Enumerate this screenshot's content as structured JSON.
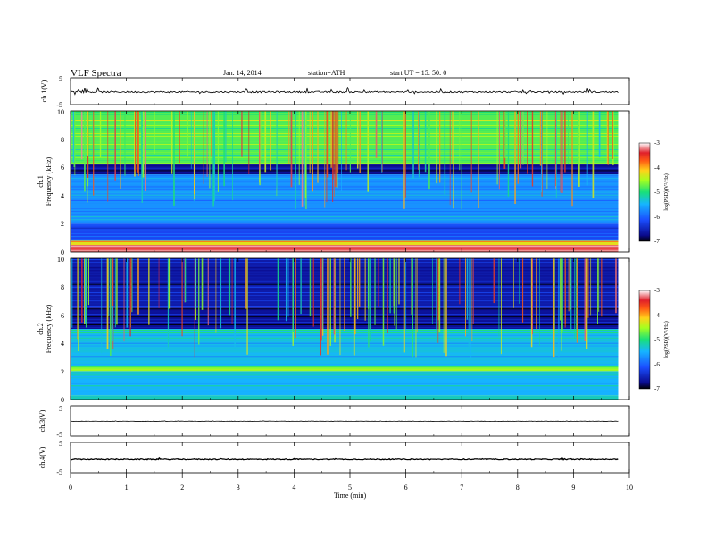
{
  "header": {
    "title": "VLF  Spectra",
    "date": "Jan. 14, 2014",
    "station": "station=ATH",
    "start": "start  UT  =   15: 50: 0"
  },
  "chart_data": [
    {
      "type": "line",
      "panel": "ch1-waveform",
      "ylabel": "ch.1(V)",
      "ylim": [
        -5,
        5
      ],
      "yticks": [
        "5",
        "-5"
      ],
      "xlim": [
        0,
        10
      ],
      "baseline": -0.3,
      "noise_amplitude": 0.3,
      "spike_amplitude": 1.2
    },
    {
      "type": "heatmap",
      "panel": "ch1-spectrogram",
      "ylabel": "Frequency  (kHz)",
      "ylabel2": "ch.1",
      "ylim": [
        0,
        10
      ],
      "yticks": [
        "0",
        "2",
        "4",
        "6",
        "8",
        "10"
      ],
      "xlim": [
        0,
        10
      ],
      "data_xmax": 9.8,
      "colorbar": {
        "label": "log(PSD)(V²/Hz)",
        "range": [
          -7,
          -3
        ],
        "ticks": [
          "-3",
          "-4",
          "-5",
          "-6",
          "-7"
        ]
      },
      "bands": [
        {
          "f": [
            0.0,
            0.5
          ],
          "level": -3.3
        },
        {
          "f": [
            0.5,
            0.8
          ],
          "level": -4.3
        },
        {
          "f": [
            0.8,
            2.0
          ],
          "level": -6.2
        },
        {
          "f": [
            2.0,
            5.5
          ],
          "level": -5.7
        },
        {
          "f": [
            5.5,
            6.2
          ],
          "level": -6.7
        },
        {
          "f": [
            6.2,
            10.0
          ],
          "level": -4.8
        }
      ]
    },
    {
      "type": "heatmap",
      "panel": "ch2-spectrogram",
      "ylabel": "Frequency  (kHz)",
      "ylabel2": "ch.2",
      "ylim": [
        0,
        10
      ],
      "yticks": [
        "0",
        "2",
        "4",
        "6",
        "8",
        "10"
      ],
      "xlim": [
        0,
        10
      ],
      "data_xmax": 9.8,
      "colorbar": {
        "label": "log(PSD)(V²/Hz)",
        "range": [
          -7,
          -3
        ],
        "ticks": [
          "-3",
          "-4",
          "-5",
          "-6",
          "-7"
        ]
      },
      "bands": [
        {
          "f": [
            0.0,
            0.3
          ],
          "level": -5.2
        },
        {
          "f": [
            0.3,
            2.0
          ],
          "level": -5.5
        },
        {
          "f": [
            2.0,
            2.4
          ],
          "level": -4.6
        },
        {
          "f": [
            2.4,
            5.0
          ],
          "level": -5.4
        },
        {
          "f": [
            5.0,
            6.5
          ],
          "level": -6.7
        },
        {
          "f": [
            6.5,
            10.0
          ],
          "level": -6.6
        }
      ]
    },
    {
      "type": "line",
      "panel": "ch3-waveform",
      "ylabel": "ch.3(V)",
      "ylim": [
        -5,
        5
      ],
      "yticks": [
        "5",
        "-5"
      ],
      "xlim": [
        0,
        10
      ],
      "baseline": -0.1,
      "noise_amplitude": 0.05,
      "spike_amplitude": 0.1
    },
    {
      "type": "line",
      "panel": "ch4-waveform",
      "ylabel": "ch.4(V)",
      "ylim": [
        -5,
        5
      ],
      "yticks": [
        "5",
        "-5"
      ],
      "xlim": [
        0,
        10
      ],
      "baseline": -0.5,
      "noise_amplitude": 0.15,
      "spike_amplitude": 0.15
    }
  ],
  "xaxis": {
    "label": "Time  (min)",
    "ticks": [
      "0",
      "1",
      "2",
      "3",
      "4",
      "5",
      "6",
      "7",
      "8",
      "9",
      "10"
    ]
  }
}
